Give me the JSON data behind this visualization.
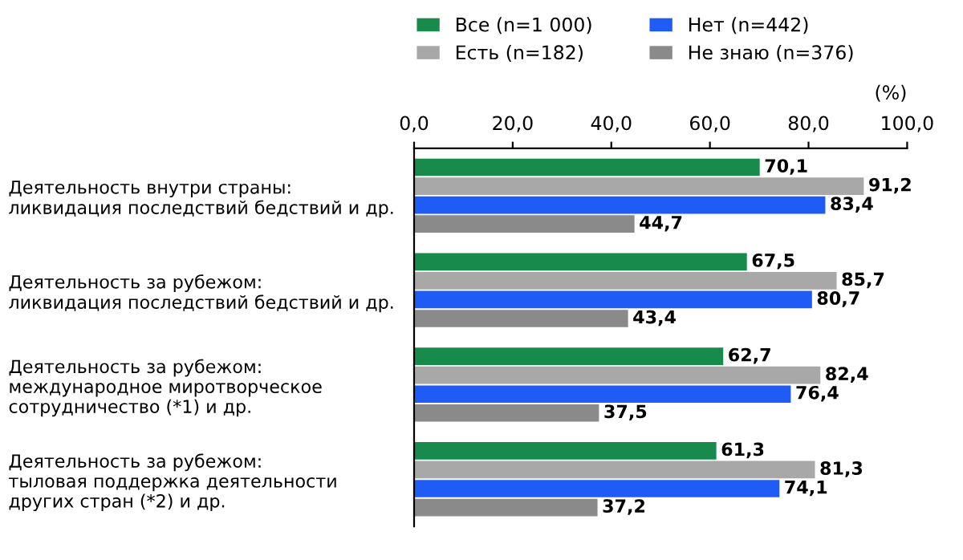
{
  "chart_data": {
    "type": "bar",
    "orientation": "horizontal",
    "categories": [
      "Деятельность внутри страны:\nликвидация последствий бедствий и др.",
      "Деятельность за рубежом:\nликвидация последствий бедствий и др.",
      "Деятельность за рубежом:\nмеждународное миротворческое\nсотрудничество (*1) и др.",
      "Деятельность за рубежом:\nтыловая поддержка деятельности\nдругих стран (*2) и др."
    ],
    "series": [
      {
        "name": "Все (n=1 000)",
        "color": "#178a4c",
        "values": [
          70.1,
          67.5,
          62.7,
          61.3
        ],
        "value_labels": [
          "70,1",
          "67,5",
          "62,7",
          "61,3"
        ]
      },
      {
        "name": "Есть (n=182)",
        "color": "#a8a8a8",
        "values": [
          91.2,
          85.7,
          82.4,
          81.3
        ],
        "value_labels": [
          "91,2",
          "85,7",
          "82,4",
          "81,3"
        ]
      },
      {
        "name": "Нет (n=442)",
        "color": "#1f5bf5",
        "values": [
          83.4,
          80.7,
          76.4,
          74.1
        ],
        "value_labels": [
          "83,4",
          "80,7",
          "76,4",
          "74,1"
        ]
      },
      {
        "name": "Не знаю (n=376)",
        "color": "#8a8a8a",
        "values": [
          44.7,
          43.4,
          37.5,
          37.2
        ],
        "value_labels": [
          "44,7",
          "43,4",
          "37,5",
          "37,2"
        ]
      }
    ],
    "xlim": [
      0,
      100
    ],
    "xticks": [
      {
        "value": 0,
        "label": "0,0"
      },
      {
        "value": 20,
        "label": "20,0"
      },
      {
        "value": 40,
        "label": "40,0"
      },
      {
        "value": 60,
        "label": "60,0"
      },
      {
        "value": 80,
        "label": "80,0"
      },
      {
        "value": 100,
        "label": "100,0"
      }
    ],
    "annotations": [
      "(%)"
    ],
    "legend": "top",
    "grid": false
  }
}
